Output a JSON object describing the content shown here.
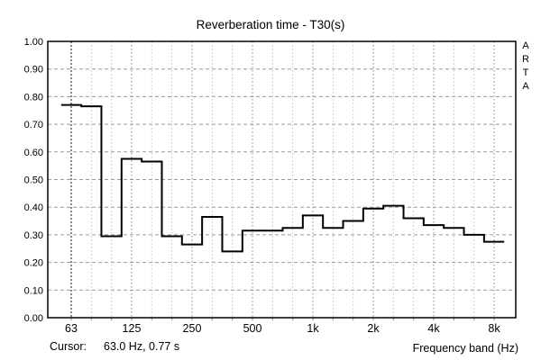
{
  "header": {
    "title": "Reverberation time - T30(s)"
  },
  "watermark": {
    "letters": [
      "A",
      "R",
      "T",
      "A"
    ]
  },
  "status_bar": {
    "cursor_label": "Cursor:",
    "cursor_value": "63.0 Hz, 0.77 s",
    "x_axis_label": "Frequency band (Hz)"
  },
  "chart_data": {
    "type": "bar",
    "subtype": "step-outline",
    "title": "Reverberation time - T30(s)",
    "xlabel": "Frequency band (Hz)",
    "ylabel": "",
    "categories": [
      "63",
      "80",
      "100",
      "125",
      "160",
      "200",
      "250",
      "315",
      "400",
      "500",
      "630",
      "800",
      "1k",
      "1.25k",
      "1.6k",
      "2k",
      "2.5k",
      "3.15k",
      "4k",
      "5k",
      "6.3k",
      "8k"
    ],
    "values": [
      0.77,
      0.765,
      0.295,
      0.575,
      0.565,
      0.295,
      0.265,
      0.365,
      0.24,
      0.315,
      0.315,
      0.325,
      0.37,
      0.325,
      0.35,
      0.395,
      0.405,
      0.36,
      0.335,
      0.325,
      0.3,
      0.275
    ],
    "ylim": [
      0.0,
      1.0
    ],
    "ytick_labels_top_down": [
      "1.00",
      "0.90",
      "0.80",
      "0.70",
      "0.60",
      "0.50",
      "0.40",
      "0.30",
      "0.20",
      "0.10",
      "0.00"
    ],
    "xticks": [
      {
        "label": "63",
        "band": 0
      },
      {
        "label": "125",
        "band": 3
      },
      {
        "label": "250",
        "band": 6
      },
      {
        "label": "500",
        "band": 9
      },
      {
        "label": "1k",
        "band": 12
      },
      {
        "label": "2k",
        "band": 15
      },
      {
        "label": "4k",
        "band": 18
      },
      {
        "label": "8k",
        "band": 21
      }
    ],
    "cursor": {
      "band": 0,
      "freq": "63.0 Hz",
      "value": "0.77 s"
    },
    "grid": true,
    "legend": "none",
    "colors": {
      "line": "#000000",
      "frame": "#000000",
      "grid_major_h": "#999999",
      "grid_major_v": "#8a8a8a",
      "grid_minor_v": "#c2c2c2",
      "cursor": "#3c3c3c",
      "text": "#000000",
      "background": "#ffffff"
    }
  }
}
